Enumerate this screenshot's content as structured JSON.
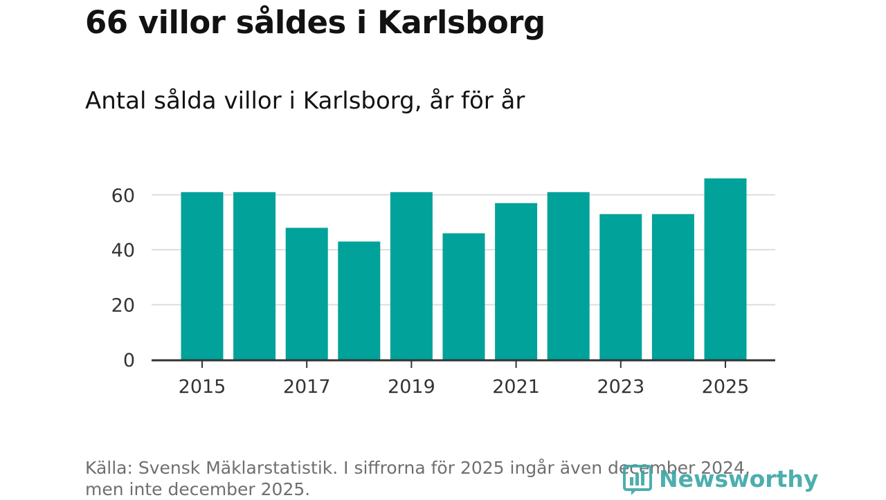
{
  "title": "66 villor såldes i Karlsborg",
  "subtitle": "Antal sålda villor i Karlsborg, år för år",
  "source": "Källa: Svensk Mäklarstatistik. I siffrorna för 2025 ingår även december 2024, men inte december 2025.",
  "brand": "Newsworthy",
  "colors": {
    "bar": "#00a29a",
    "grid": "#dddddd",
    "axis": "#333333",
    "brand": "#3aa6a6"
  },
  "chart_data": {
    "type": "bar",
    "categories": [
      "2015",
      "2016",
      "2017",
      "2018",
      "2019",
      "2020",
      "2021",
      "2022",
      "2023",
      "2024",
      "2025"
    ],
    "values": [
      61,
      61,
      48,
      43,
      61,
      46,
      57,
      61,
      53,
      53,
      66
    ],
    "x_tick_labels": [
      "2015",
      "2017",
      "2019",
      "2021",
      "2023",
      "2025"
    ],
    "y_ticks": [
      0,
      20,
      40,
      60
    ],
    "ylim": [
      0,
      68
    ],
    "grid": true
  }
}
